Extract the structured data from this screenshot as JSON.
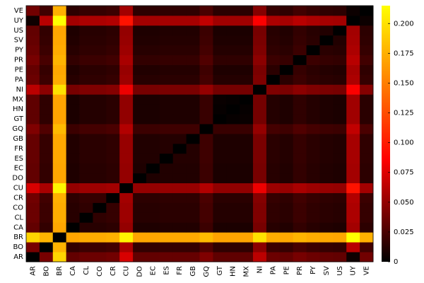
{
  "chart_data": {
    "type": "heatmap",
    "xcategories": [
      "AR",
      "BO",
      "BR",
      "CA",
      "CL",
      "CO",
      "CR",
      "CU",
      "DO",
      "EC",
      "ES",
      "FR",
      "GB",
      "GQ",
      "GT",
      "HN",
      "MX",
      "NI",
      "PA",
      "PE",
      "PR",
      "PY",
      "SV",
      "US",
      "UY",
      "VE"
    ],
    "ycategories": [
      "AR",
      "BO",
      "BR",
      "CA",
      "CL",
      "CO",
      "CR",
      "CU",
      "DO",
      "EC",
      "ES",
      "FR",
      "GB",
      "GQ",
      "GT",
      "HN",
      "MX",
      "NI",
      "PA",
      "PE",
      "PR",
      "PY",
      "SV",
      "US",
      "UY",
      "VE"
    ],
    "z": [
      [
        0,
        0.04,
        0.193,
        0.033,
        0.036,
        0.036,
        0.038,
        0.073,
        0.033,
        0.033,
        0.034,
        0.034,
        0.034,
        0.043,
        0.032,
        0.032,
        0.032,
        0.063,
        0.036,
        0.034,
        0.04,
        0.036,
        0.034,
        0.033,
        0.005,
        0.038
      ],
      [
        0.04,
        0,
        0.177,
        0.017,
        0.02,
        0.02,
        0.022,
        0.057,
        0.017,
        0.017,
        0.018,
        0.018,
        0.018,
        0.027,
        0.016,
        0.016,
        0.016,
        0.047,
        0.02,
        0.018,
        0.024,
        0.02,
        0.018,
        0.017,
        0.062,
        0.022
      ],
      [
        0.193,
        0.177,
        0,
        0.17,
        0.173,
        0.173,
        0.175,
        0.21,
        0.17,
        0.17,
        0.171,
        0.171,
        0.171,
        0.18,
        0.169,
        0.169,
        0.169,
        0.2,
        0.173,
        0.171,
        0.177,
        0.173,
        0.171,
        0.17,
        0.215,
        0.175
      ],
      [
        0.033,
        0.017,
        0.17,
        0,
        0.013,
        0.013,
        0.015,
        0.05,
        0.01,
        0.01,
        0.011,
        0.011,
        0.011,
        0.02,
        0.009,
        0.009,
        0.009,
        0.04,
        0.013,
        0.011,
        0.017,
        0.013,
        0.011,
        0.01,
        0.055,
        0.015
      ],
      [
        0.036,
        0.02,
        0.173,
        0.013,
        0,
        0.016,
        0.018,
        0.053,
        0.013,
        0.013,
        0.014,
        0.014,
        0.014,
        0.023,
        0.012,
        0.012,
        0.012,
        0.043,
        0.016,
        0.014,
        0.02,
        0.016,
        0.014,
        0.013,
        0.058,
        0.018
      ],
      [
        0.036,
        0.02,
        0.173,
        0.013,
        0.016,
        0,
        0.018,
        0.053,
        0.013,
        0.013,
        0.014,
        0.014,
        0.014,
        0.023,
        0.012,
        0.012,
        0.012,
        0.043,
        0.016,
        0.014,
        0.02,
        0.016,
        0.014,
        0.013,
        0.058,
        0.018
      ],
      [
        0.038,
        0.022,
        0.175,
        0.015,
        0.018,
        0.018,
        0,
        0.055,
        0.015,
        0.015,
        0.016,
        0.016,
        0.016,
        0.025,
        0.014,
        0.014,
        0.014,
        0.045,
        0.018,
        0.016,
        0.022,
        0.018,
        0.016,
        0.015,
        0.06,
        0.02
      ],
      [
        0.073,
        0.057,
        0.21,
        0.05,
        0.053,
        0.053,
        0.055,
        0,
        0.05,
        0.05,
        0.051,
        0.051,
        0.051,
        0.06,
        0.049,
        0.049,
        0.049,
        0.08,
        0.053,
        0.051,
        0.057,
        0.053,
        0.051,
        0.05,
        0.095,
        0.055
      ],
      [
        0.033,
        0.017,
        0.17,
        0.01,
        0.013,
        0.013,
        0.015,
        0.05,
        0,
        0.01,
        0.011,
        0.011,
        0.011,
        0.02,
        0.009,
        0.009,
        0.009,
        0.04,
        0.013,
        0.011,
        0.017,
        0.013,
        0.011,
        0.01,
        0.055,
        0.015
      ],
      [
        0.033,
        0.017,
        0.17,
        0.01,
        0.013,
        0.013,
        0.015,
        0.05,
        0.01,
        0,
        0.011,
        0.011,
        0.011,
        0.02,
        0.009,
        0.009,
        0.009,
        0.04,
        0.013,
        0.011,
        0.017,
        0.013,
        0.011,
        0.01,
        0.055,
        0.015
      ],
      [
        0.034,
        0.018,
        0.171,
        0.011,
        0.014,
        0.014,
        0.016,
        0.051,
        0.011,
        0.011,
        0,
        0.012,
        0.012,
        0.021,
        0.01,
        0.01,
        0.01,
        0.041,
        0.014,
        0.012,
        0.018,
        0.014,
        0.012,
        0.011,
        0.056,
        0.016
      ],
      [
        0.034,
        0.018,
        0.171,
        0.011,
        0.014,
        0.014,
        0.016,
        0.051,
        0.011,
        0.011,
        0.012,
        0,
        0.012,
        0.021,
        0.01,
        0.01,
        0.01,
        0.041,
        0.014,
        0.012,
        0.018,
        0.014,
        0.012,
        0.011,
        0.056,
        0.016
      ],
      [
        0.034,
        0.018,
        0.171,
        0.011,
        0.014,
        0.014,
        0.016,
        0.051,
        0.011,
        0.011,
        0.012,
        0.012,
        0,
        0.021,
        0.01,
        0.01,
        0.01,
        0.041,
        0.014,
        0.012,
        0.018,
        0.014,
        0.012,
        0.011,
        0.056,
        0.016
      ],
      [
        0.043,
        0.027,
        0.18,
        0.02,
        0.023,
        0.023,
        0.025,
        0.06,
        0.02,
        0.02,
        0.021,
        0.021,
        0.021,
        0,
        0.019,
        0.019,
        0.019,
        0.05,
        0.023,
        0.021,
        0.027,
        0.023,
        0.021,
        0.02,
        0.065,
        0.025
      ],
      [
        0.032,
        0.016,
        0.169,
        0.009,
        0.012,
        0.012,
        0.014,
        0.049,
        0.009,
        0.009,
        0.01,
        0.01,
        0.01,
        0.019,
        0,
        0.002,
        0.003,
        0.039,
        0.012,
        0.01,
        0.016,
        0.012,
        0.01,
        0.009,
        0.054,
        0.014
      ],
      [
        0.032,
        0.016,
        0.169,
        0.009,
        0.012,
        0.012,
        0.014,
        0.049,
        0.009,
        0.009,
        0.01,
        0.01,
        0.01,
        0.019,
        0.002,
        0,
        0.002,
        0.039,
        0.012,
        0.01,
        0.016,
        0.012,
        0.01,
        0.009,
        0.054,
        0.014
      ],
      [
        0.032,
        0.016,
        0.169,
        0.009,
        0.012,
        0.012,
        0.014,
        0.049,
        0.009,
        0.009,
        0.01,
        0.01,
        0.01,
        0.019,
        0.003,
        0.002,
        0,
        0.039,
        0.012,
        0.01,
        0.016,
        0.012,
        0.01,
        0.009,
        0.054,
        0.014
      ],
      [
        0.063,
        0.047,
        0.2,
        0.04,
        0.043,
        0.043,
        0.045,
        0.08,
        0.04,
        0.04,
        0.041,
        0.041,
        0.041,
        0.05,
        0.039,
        0.039,
        0.039,
        0,
        0.043,
        0.041,
        0.047,
        0.043,
        0.041,
        0.04,
        0.085,
        0.045
      ],
      [
        0.036,
        0.02,
        0.173,
        0.013,
        0.016,
        0.016,
        0.018,
        0.053,
        0.013,
        0.013,
        0.014,
        0.014,
        0.014,
        0.023,
        0.012,
        0.012,
        0.012,
        0.043,
        0,
        0.014,
        0.02,
        0.016,
        0.014,
        0.013,
        0.058,
        0.018
      ],
      [
        0.034,
        0.018,
        0.171,
        0.011,
        0.014,
        0.014,
        0.016,
        0.051,
        0.011,
        0.011,
        0.012,
        0.012,
        0.012,
        0.021,
        0.01,
        0.01,
        0.01,
        0.041,
        0.014,
        0,
        0.018,
        0.014,
        0.012,
        0.011,
        0.056,
        0.016
      ],
      [
        0.04,
        0.024,
        0.177,
        0.017,
        0.02,
        0.02,
        0.022,
        0.057,
        0.017,
        0.017,
        0.018,
        0.018,
        0.018,
        0.027,
        0.016,
        0.016,
        0.016,
        0.047,
        0.02,
        0.018,
        0,
        0.02,
        0.018,
        0.017,
        0.062,
        0.022
      ],
      [
        0.036,
        0.02,
        0.173,
        0.013,
        0.016,
        0.016,
        0.018,
        0.053,
        0.013,
        0.013,
        0.014,
        0.014,
        0.014,
        0.023,
        0.012,
        0.012,
        0.012,
        0.043,
        0.016,
        0.014,
        0.02,
        0,
        0.014,
        0.013,
        0.058,
        0.018
      ],
      [
        0.034,
        0.018,
        0.171,
        0.011,
        0.014,
        0.014,
        0.016,
        0.051,
        0.011,
        0.011,
        0.012,
        0.012,
        0.012,
        0.021,
        0.01,
        0.01,
        0.01,
        0.041,
        0.014,
        0.012,
        0.018,
        0.014,
        0,
        0.011,
        0.056,
        0.016
      ],
      [
        0.033,
        0.017,
        0.17,
        0.01,
        0.013,
        0.013,
        0.015,
        0.05,
        0.01,
        0.01,
        0.011,
        0.011,
        0.011,
        0.02,
        0.009,
        0.009,
        0.009,
        0.04,
        0.013,
        0.011,
        0.017,
        0.013,
        0.011,
        0,
        0.055,
        0.015
      ],
      [
        0.005,
        0.062,
        0.215,
        0.055,
        0.058,
        0.058,
        0.06,
        0.095,
        0.055,
        0.055,
        0.056,
        0.056,
        0.056,
        0.065,
        0.054,
        0.054,
        0.054,
        0.085,
        0.058,
        0.056,
        0.062,
        0.058,
        0.056,
        0.055,
        0,
        0.004
      ],
      [
        0.038,
        0.022,
        0.175,
        0.015,
        0.018,
        0.018,
        0.02,
        0.055,
        0.015,
        0.015,
        0.016,
        0.016,
        0.016,
        0.025,
        0.014,
        0.014,
        0.014,
        0.045,
        0.018,
        0.016,
        0.022,
        0.018,
        0.016,
        0.015,
        0.004,
        0
      ]
    ],
    "zlim": [
      0,
      0.215
    ],
    "zticks": [
      0,
      0.025,
      {
        "value": 0.05,
        "label": "0.050"
      },
      0.075,
      {
        "value": 0.1,
        "label": "0.100"
      },
      0.125,
      {
        "value": 0.15,
        "label": "0.150"
      },
      0.175,
      {
        "value": 0.2,
        "label": "0.200"
      }
    ],
    "colormap": "hot"
  }
}
